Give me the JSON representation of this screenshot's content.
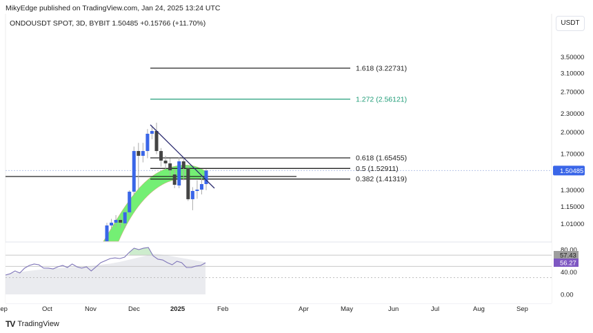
{
  "header": {
    "published": "MikyEdge published on TradingView.com, Jan 24, 2025 13:24 UTC",
    "symbol_line": "ONDOUSDT SPOT, 3D, BYBIT  1.50485  +0.15766 (+11.70%)",
    "currency_button": "USDT"
  },
  "footer": {
    "brand": "TradingView",
    "logo_icon": "tradingview-logo-icon"
  },
  "colors": {
    "up": "#3a66e8",
    "down": "#444444",
    "fib_green": "#1f9c77",
    "cloud": "#66ee66",
    "rsi": "#7e74b8",
    "rsi_badge": "#7e57c2",
    "ma_badge": "#9e9e9e"
  },
  "chart_data": [
    {
      "type": "candlestick",
      "scale": "log",
      "price_ticks": [
        "3.50000",
        "3.10000",
        "2.70000",
        "2.30000",
        "2.00000",
        "1.70000",
        "1.30000",
        "1.15000",
        "1.01000"
      ],
      "last_price": "1.50485",
      "x_ticks": [
        "Sep",
        "Oct",
        "Nov",
        "Dec",
        "2025",
        "Feb",
        "Apr",
        "May",
        "Jun",
        "Jul",
        "Aug",
        "Sep"
      ],
      "ohlc": [
        [
          0.889,
          1.02,
          0.87,
          1.0
        ],
        [
          1.0,
          1.05,
          0.97,
          1.021
        ],
        [
          1.021,
          1.08,
          0.99,
          1.042
        ],
        [
          1.042,
          1.07,
          0.98,
          1.021
        ],
        [
          1.016,
          1.12,
          0.98,
          1.103
        ],
        [
          1.103,
          1.3,
          1.08,
          1.286
        ],
        [
          1.286,
          1.8,
          1.25,
          1.741
        ],
        [
          1.741,
          1.85,
          1.3,
          1.68
        ],
        [
          1.68,
          1.85,
          1.6,
          1.741
        ],
        [
          1.741,
          2.05,
          1.65,
          1.98
        ],
        [
          1.98,
          2.1,
          1.9,
          2.021
        ],
        [
          2.021,
          2.15,
          1.7,
          1.741
        ],
        [
          1.741,
          1.78,
          1.55,
          1.621
        ],
        [
          1.621,
          1.68,
          1.52,
          1.588
        ],
        [
          1.588,
          1.65,
          1.45,
          1.508
        ],
        [
          1.462,
          1.52,
          1.32,
          1.354
        ],
        [
          1.347,
          1.66,
          1.32,
          1.612
        ],
        [
          1.612,
          1.65,
          1.4,
          1.532
        ],
        [
          1.532,
          1.56,
          1.2,
          1.216
        ],
        [
          1.216,
          1.33,
          1.12,
          1.293
        ],
        [
          1.293,
          1.4,
          1.22,
          1.306
        ],
        [
          1.306,
          1.44,
          1.26,
          1.361
        ],
        [
          1.361,
          1.52,
          1.3,
          1.50485
        ]
      ],
      "fib_levels": [
        {
          "label": "1.618 (3.22731)",
          "price": 3.22731,
          "color": "#222222"
        },
        {
          "label": "1.272 (2.56121)",
          "price": 2.56121,
          "color": "#1f9c77"
        },
        {
          "label": "0.618 (1.65455)",
          "price": 1.65455,
          "color": "#222222"
        },
        {
          "label": "0.5 (1.52911)",
          "price": 1.52911,
          "color": "#222222"
        },
        {
          "label": "0.382 (1.41319)",
          "price": 1.41319,
          "color": "#222222"
        }
      ],
      "horizontal_line": 1.44,
      "trendline": [
        2.12,
        1.35
      ]
    },
    {
      "type": "line",
      "indicator": "RSI",
      "y_ticks": [
        "80.00",
        "40.00",
        "0.00"
      ],
      "levels": [
        70,
        50,
        30
      ],
      "rsi_value": "56.27",
      "ma_value": "57.43",
      "rsi": [
        34.5,
        36.9,
        41.8,
        38.2,
        46.8,
        51.7,
        54.2,
        52.9,
        46.8,
        46.8,
        45.5,
        49.2,
        51.7,
        48,
        54.2,
        49.2,
        46.8,
        49.2,
        41.8,
        49.2,
        56.6,
        60.3,
        64,
        65.2,
        64,
        66.5,
        75.1,
        82.5,
        80,
        82.5,
        83.7,
        68.9,
        62.8,
        61.5,
        56.6,
        52.9,
        59.1,
        56.6,
        48,
        48,
        50.5,
        51.7,
        56.27
      ],
      "ma": [
        36,
        38,
        39,
        40,
        41,
        42,
        43,
        44,
        45,
        46,
        46.5,
        47,
        47.5,
        48,
        48.5,
        49,
        49.5,
        50,
        51,
        52,
        53,
        54,
        55,
        56.5,
        58,
        60,
        62,
        64,
        66,
        68,
        70,
        72,
        72,
        71,
        69.5,
        68,
        66.5,
        65,
        63.5,
        62,
        60.5,
        59,
        57.43
      ]
    }
  ]
}
